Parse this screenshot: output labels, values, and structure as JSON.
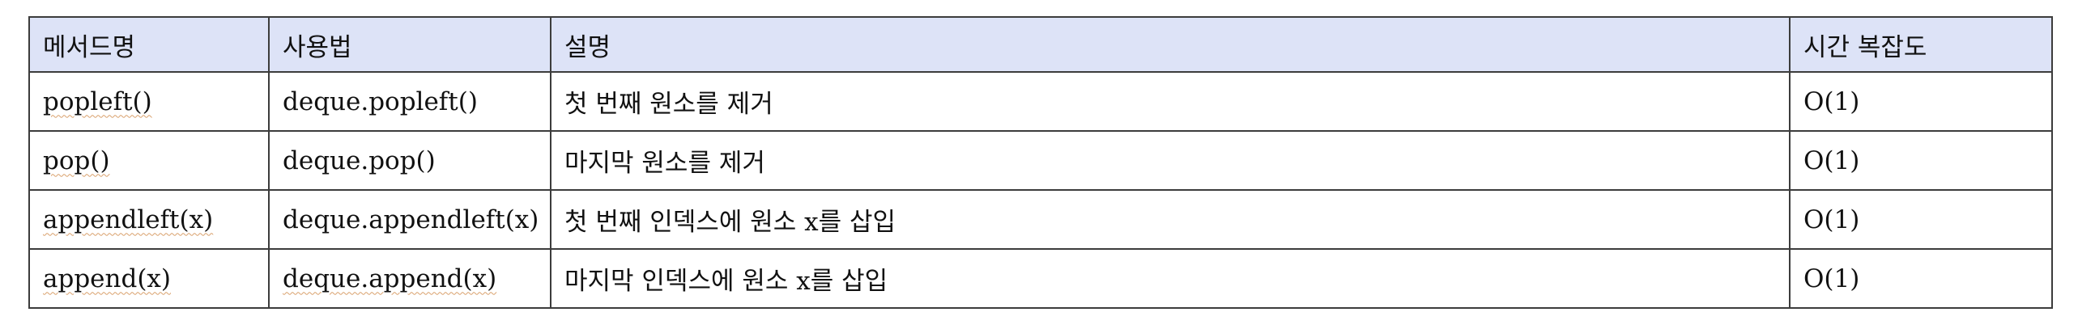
{
  "table": {
    "headers": [
      "메서드명",
      "사용법",
      "설명",
      "시간 복잡도"
    ],
    "rows": [
      {
        "method": "popleft()",
        "usage": "deque.popleft()",
        "description": "첫 번째 원소를 제거",
        "complexity": "O(1)"
      },
      {
        "method": "pop()",
        "usage": "deque.pop()",
        "description": "마지막 원소를 제거",
        "complexity": "O(1)"
      },
      {
        "method": "appendleft(x)",
        "usage": "deque.appendleft(x)",
        "description": "첫 번째 인덱스에 원소 x를 삽입",
        "complexity": "O(1)"
      },
      {
        "method": "append(x)",
        "usage": "deque.append(x)",
        "description": "마지막 인덱스에 원소 x를 삽입",
        "complexity": "O(1)"
      }
    ]
  },
  "colors": {
    "header_background": "#dde3f7",
    "border": "#3c3c3c",
    "spellcheck_underline": "#d9a06b"
  }
}
